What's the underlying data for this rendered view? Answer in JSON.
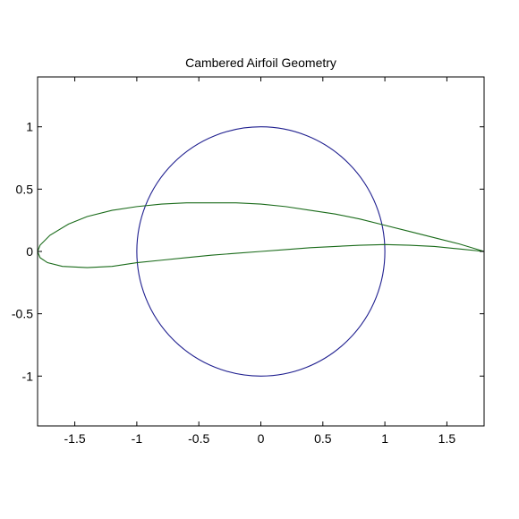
{
  "chart_data": {
    "type": "line",
    "title": "Cambered Airfoil Geometry",
    "xlabel": "",
    "ylabel": "",
    "xlim": [
      -1.8,
      1.8
    ],
    "ylim": [
      -1.4,
      1.4
    ],
    "grid": false,
    "x_ticks": [
      {
        "value": -1.5,
        "label": "-1.5"
      },
      {
        "value": -1,
        "label": "-1"
      },
      {
        "value": -0.5,
        "label": "-0.5"
      },
      {
        "value": 0,
        "label": "0"
      },
      {
        "value": 0.5,
        "label": "0.5"
      },
      {
        "value": 1,
        "label": "1"
      },
      {
        "value": 1.5,
        "label": "1.5"
      }
    ],
    "y_ticks": [
      {
        "value": 1,
        "label": "1"
      },
      {
        "value": 0.5,
        "label": "0.5"
      },
      {
        "value": 0,
        "label": "0"
      },
      {
        "value": -0.5,
        "label": "-0.5"
      },
      {
        "value": -1,
        "label": "-1"
      }
    ],
    "series": [
      {
        "kind": "circle",
        "color": "#1f1f8f",
        "center": [
          0,
          0
        ],
        "radius": 1
      },
      {
        "kind": "airfoil",
        "color": "#1a6b1a",
        "upper": [
          [
            1.8,
            0.0
          ],
          [
            1.6,
            0.06
          ],
          [
            1.4,
            0.11
          ],
          [
            1.2,
            0.16
          ],
          [
            1.0,
            0.21
          ],
          [
            0.8,
            0.26
          ],
          [
            0.6,
            0.3
          ],
          [
            0.4,
            0.33
          ],
          [
            0.2,
            0.36
          ],
          [
            0.0,
            0.38
          ],
          [
            -0.2,
            0.39
          ],
          [
            -0.4,
            0.39
          ],
          [
            -0.6,
            0.39
          ],
          [
            -0.8,
            0.38
          ],
          [
            -1.0,
            0.36
          ],
          [
            -1.2,
            0.33
          ],
          [
            -1.4,
            0.28
          ],
          [
            -1.55,
            0.22
          ],
          [
            -1.7,
            0.13
          ],
          [
            -1.78,
            0.05
          ],
          [
            -1.8,
            0.0
          ]
        ],
        "lower": [
          [
            -1.8,
            0.0
          ],
          [
            -1.78,
            -0.05
          ],
          [
            -1.72,
            -0.09
          ],
          [
            -1.6,
            -0.12
          ],
          [
            -1.4,
            -0.13
          ],
          [
            -1.2,
            -0.12
          ],
          [
            -1.0,
            -0.09
          ],
          [
            -0.8,
            -0.07
          ],
          [
            -0.6,
            -0.05
          ],
          [
            -0.4,
            -0.03
          ],
          [
            -0.2,
            -0.015
          ],
          [
            0.0,
            0.0
          ],
          [
            0.2,
            0.015
          ],
          [
            0.4,
            0.03
          ],
          [
            0.6,
            0.04
          ],
          [
            0.8,
            0.05
          ],
          [
            1.0,
            0.055
          ],
          [
            1.2,
            0.05
          ],
          [
            1.4,
            0.04
          ],
          [
            1.6,
            0.02
          ],
          [
            1.8,
            0.0
          ]
        ]
      }
    ]
  }
}
